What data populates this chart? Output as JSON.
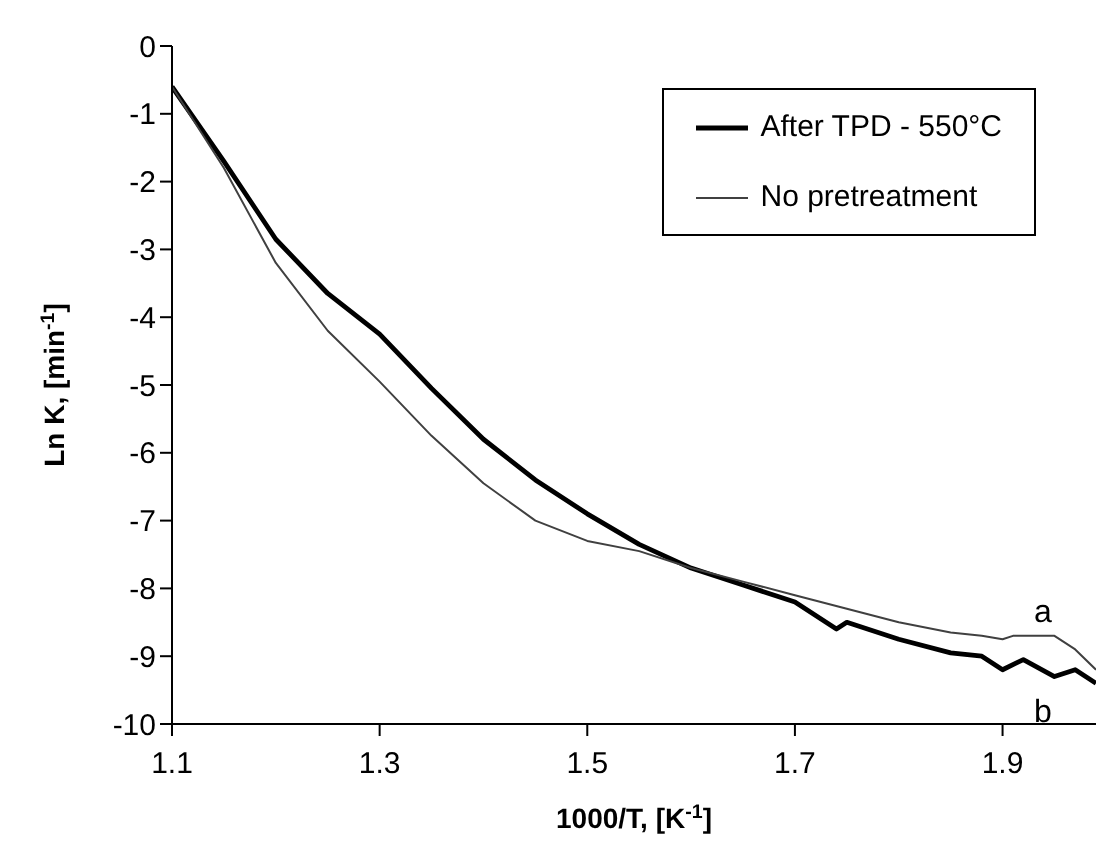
{
  "chart_data": {
    "type": "line",
    "xlabel": "1000/T, [K$^{-1}$]",
    "ylabel": "Ln K, [min$^{-1}$]",
    "xlim": [
      1.1,
      1.99
    ],
    "xticks": [
      1.1,
      1.3,
      1.5,
      1.7,
      1.9
    ],
    "ylim": [
      -10,
      0
    ],
    "yticks": [
      -10,
      -9,
      -8,
      -7,
      -6,
      -5,
      -4,
      -3,
      -2,
      -1,
      0
    ],
    "grid": false,
    "legend": "top right",
    "marker": "none",
    "line_style": "solid",
    "annotations": [
      "a",
      "b"
    ],
    "series": [
      {
        "name": "After TPD - 550°C",
        "color": "#000000",
        "x": [
          1.1,
          1.15,
          1.2,
          1.25,
          1.3,
          1.35,
          1.4,
          1.45,
          1.5,
          1.55,
          1.6,
          1.65,
          1.7,
          1.74,
          1.75,
          1.8,
          1.85,
          1.88,
          1.9,
          1.92,
          1.95,
          1.97,
          1.99
        ],
        "values": [
          -0.6,
          -1.7,
          -2.85,
          -3.65,
          -4.25,
          -5.05,
          -5.8,
          -6.4,
          -6.9,
          -7.35,
          -7.7,
          -7.95,
          -8.2,
          -8.6,
          -8.5,
          -8.75,
          -8.95,
          -9.0,
          -9.2,
          -9.05,
          -9.3,
          -9.2,
          -9.4
        ]
      },
      {
        "name": "No pretreatment",
        "color": "#404040",
        "x": [
          1.1,
          1.15,
          1.2,
          1.25,
          1.3,
          1.35,
          1.4,
          1.45,
          1.5,
          1.55,
          1.6,
          1.65,
          1.7,
          1.75,
          1.8,
          1.85,
          1.88,
          1.9,
          1.91,
          1.95,
          1.97,
          1.99
        ],
        "values": [
          -0.6,
          -1.8,
          -3.2,
          -4.2,
          -4.95,
          -5.75,
          -6.45,
          -7.0,
          -7.3,
          -7.45,
          -7.7,
          -7.9,
          -8.1,
          -8.3,
          -8.5,
          -8.65,
          -8.7,
          -8.75,
          -8.7,
          -8.7,
          -8.9,
          -9.2
        ]
      }
    ]
  }
}
